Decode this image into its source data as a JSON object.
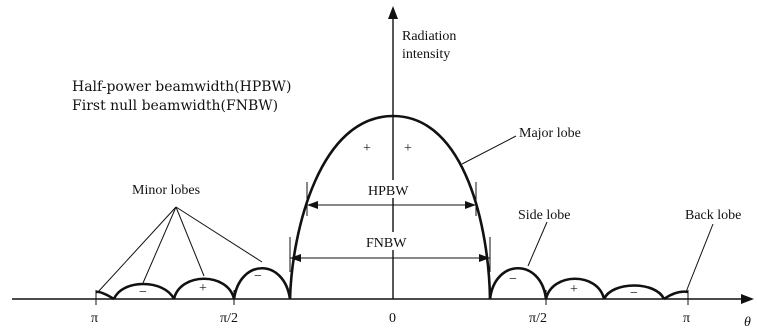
{
  "axes": {
    "y_label_line1": "Radiation",
    "y_label_line2": "intensity",
    "x_label": "θ"
  },
  "legend": {
    "line1": "Half-power beamwidth(HPBW)",
    "line2": "First null beamwidth(FNBW)"
  },
  "labels": {
    "major_lobe": "Major lobe",
    "minor_lobes": "Minor lobes",
    "side_lobe": "Side lobe",
    "back_lobe": "Back lobe",
    "hpbw": "HPBW",
    "fnbw": "FNBW"
  },
  "ticks": [
    {
      "id": "neg-pi",
      "text": "π"
    },
    {
      "id": "neg-pi-2",
      "text": "π/2"
    },
    {
      "id": "zero",
      "text": "0"
    },
    {
      "id": "pos-pi-2",
      "text": "π/2"
    },
    {
      "id": "pos-pi",
      "text": "π"
    }
  ],
  "signs": {
    "plus": "+",
    "minus": "−"
  }
}
